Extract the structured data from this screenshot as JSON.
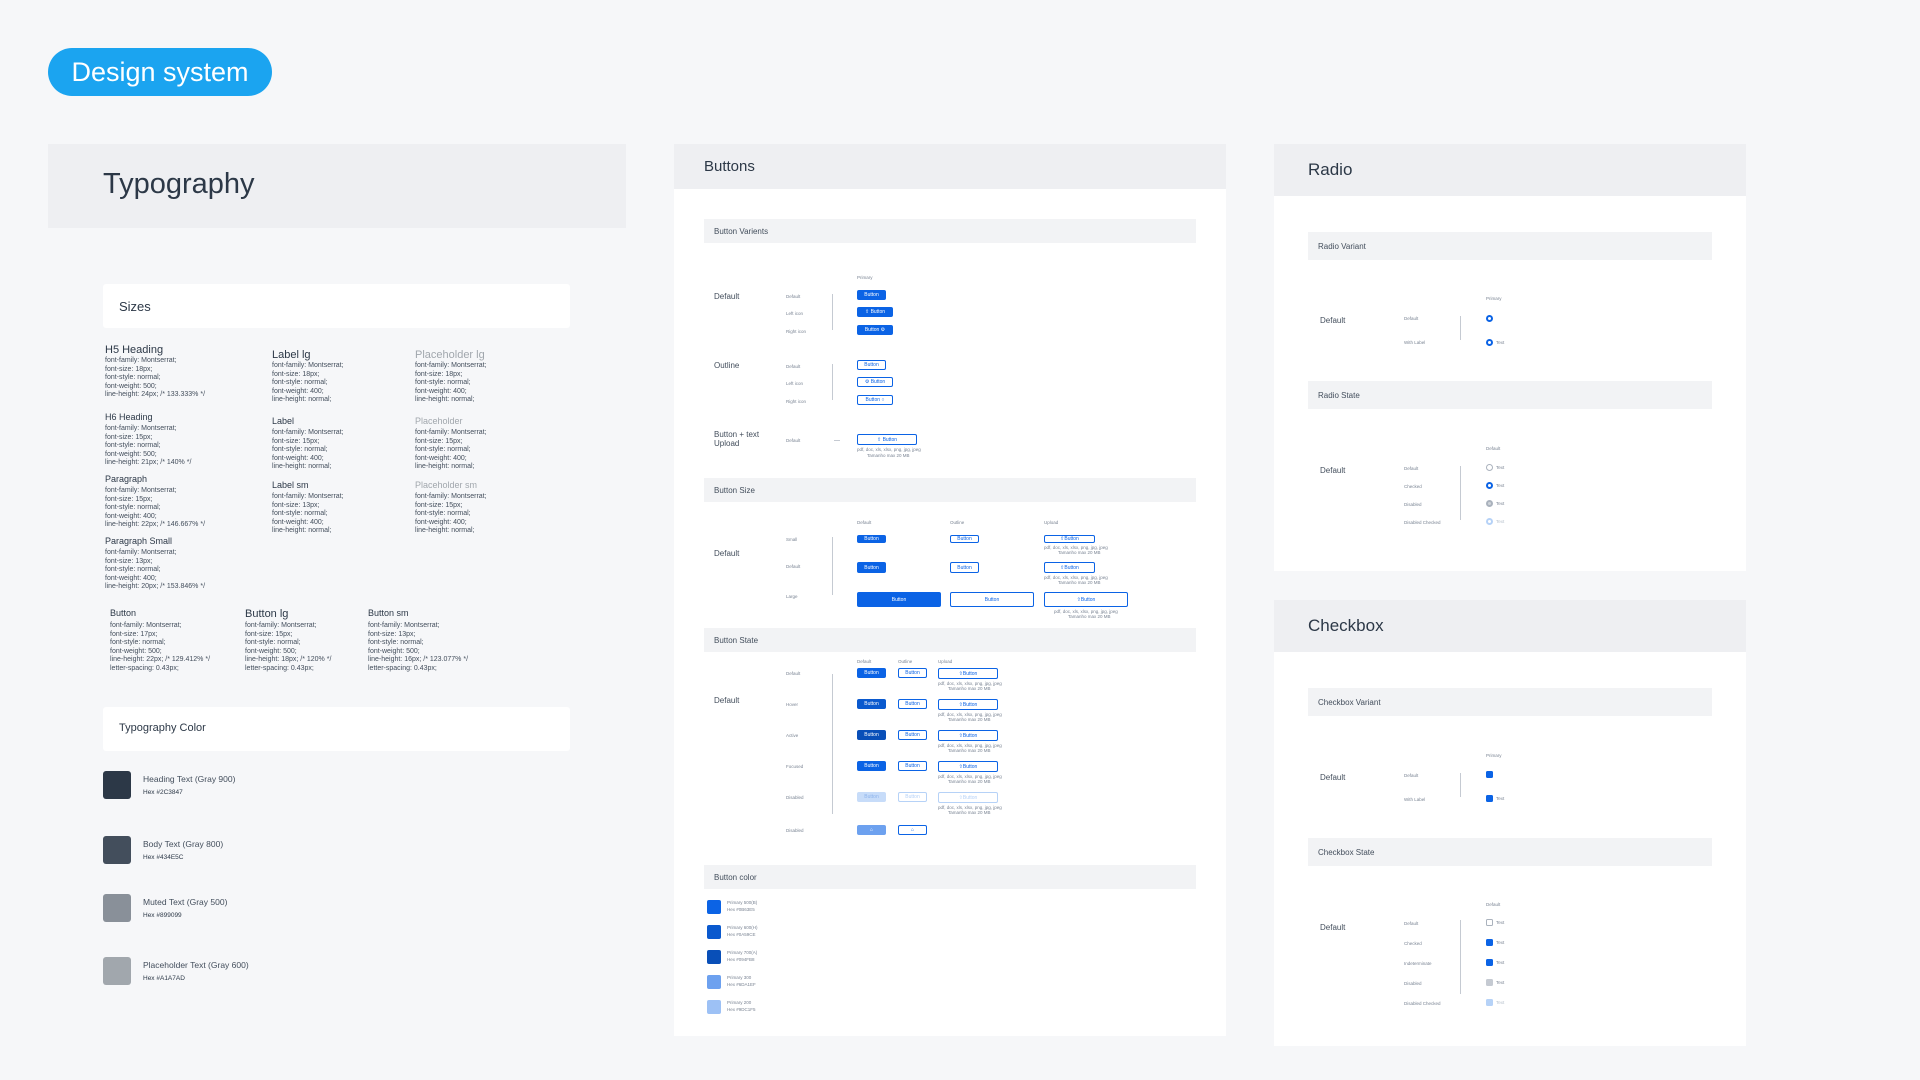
{
  "page_badge": "Design system",
  "typography": {
    "title": "Typography",
    "sizes_title": "Sizes",
    "col1": [
      {
        "name": "H5 Heading",
        "props": "font-family: Montserrat;\nfont-size: 18px;\nfont-style: normal;\nfont-weight: 500;\nline-height: 24px; /* 133.333% */"
      },
      {
        "name": "H6 Heading",
        "props": "font-family: Montserrat;\nfont-size: 15px;\nfont-style: normal;\nfont-weight: 500;\nline-height: 21px; /* 140% */"
      },
      {
        "name": "Paragraph",
        "props": "font-family: Montserrat;\nfont-size: 15px;\nfont-style: normal;\nfont-weight: 400;\nline-height: 22px; /* 146.667% */"
      },
      {
        "name": "Paragraph Small",
        "props": "font-family: Montserrat;\nfont-size: 13px;\nfont-style: normal;\nfont-weight: 400;\nline-height: 20px; /* 153.846% */"
      }
    ],
    "col2": [
      {
        "name": "Label lg",
        "props": "font-family: Montserrat;\nfont-size: 18px;\nfont-style: normal;\nfont-weight: 400;\nline-height: normal;"
      },
      {
        "name": "Label",
        "props": "font-family: Montserrat;\nfont-size: 15px;\nfont-style: normal;\nfont-weight: 400;\nline-height: normal;"
      },
      {
        "name": "Label sm",
        "props": "font-family: Montserrat;\nfont-size: 13px;\nfont-style: normal;\nfont-weight: 400;\nline-height: normal;"
      }
    ],
    "col3": [
      {
        "name": "Placeholder lg",
        "props": "font-family: Montserrat;\nfont-size: 18px;\nfont-style: normal;\nfont-weight: 400;\nline-height: normal;"
      },
      {
        "name": "Placeholder",
        "props": "font-family: Montserrat;\nfont-size: 15px;\nfont-style: normal;\nfont-weight: 400;\nline-height: normal;"
      },
      {
        "name": "Placeholder sm",
        "props": "font-family: Montserrat;\nfont-size: 15px;\nfont-style: normal;\nfont-weight: 400;\nline-height: normal;"
      }
    ],
    "buttons": [
      {
        "name": "Button",
        "props": "font-family: Montserrat;\nfont-size: 17px;\nfont-style: normal;\nfont-weight: 500;\nline-height: 22px; /* 129.412% */\nletter-spacing: 0.43px;"
      },
      {
        "name": "Button lg",
        "props": "font-family: Montserrat;\nfont-size: 15px;\nfont-style: normal;\nfont-weight: 500;\nline-height: 18px; /* 120% */\nletter-spacing: 0.43px;"
      },
      {
        "name": "Button sm",
        "props": "font-family: Montserrat;\nfont-size: 13px;\nfont-style: normal;\nfont-weight: 500;\nline-height: 16px; /* 123.077% */\nletter-spacing: 0.43px;"
      }
    ],
    "color_title": "Typography Color",
    "colors": [
      {
        "name": "Heading Text (Gray 900)",
        "hex": "Hex #2C3847",
        "color": "#2c3847"
      },
      {
        "name": "Body Text (Gray 800)",
        "hex": "Hex #434E5C",
        "color": "#434e5c"
      },
      {
        "name": "Muted Text (Gray 500)",
        "hex": "Hex #899099",
        "color": "#899099"
      },
      {
        "name": "Placeholder Text (Gray 600)",
        "hex": "Hex #A1A7AD",
        "color": "#a1a7ad"
      }
    ]
  },
  "buttons_panel": {
    "title": "Buttons",
    "variants_title": "Button Varients",
    "col_primary": "Primary",
    "row_default": "Default",
    "row_outline": "Outline",
    "row_upload": "Button + text Upload",
    "sub_default": "Default",
    "sub_left": "Left icon",
    "sub_right": "Right icon",
    "btn": "Button",
    "upload_hint": "pdf, doc, xls, xlsx, png, jpg, jpeg",
    "upload_max": "Tamanho max 20 MB",
    "size_title": "Button Size",
    "size_cols": [
      "Default",
      "Outline",
      "Upload"
    ],
    "size_rows": [
      "Small",
      "Default",
      "Large"
    ],
    "state_title": "Button State",
    "state_rows": [
      "Default",
      "Hover",
      "Active",
      "Focused",
      "Disabled",
      "Disabled"
    ],
    "color_title": "Button color",
    "colors": [
      {
        "name": "Primary 500(B)",
        "hex": "Hex #0B63E5",
        "color": "#0b63e5"
      },
      {
        "name": "Primary 600(H)",
        "hex": "Hex #0A59CE",
        "color": "#0a59ce"
      },
      {
        "name": "Primary 700(A)",
        "hex": "Hex #094FB8",
        "color": "#094fb8"
      },
      {
        "name": "Primary 300",
        "hex": "Hex #6DA1EF",
        "color": "#6da1ef"
      },
      {
        "name": "Primary 200",
        "hex": "Hex #9DC1F5",
        "color": "#9dc1f5"
      }
    ]
  },
  "radio": {
    "title": "Radio",
    "variant_title": "Radio Variant",
    "state_title": "Radio State",
    "primary": "Primary",
    "default_col": "Default",
    "row": "Default",
    "sub_default": "Default",
    "sub_label": "With Label",
    "text": "Text",
    "states": [
      "Default",
      "Checked",
      "Disabled",
      "Disabled Checked"
    ]
  },
  "checkbox": {
    "title": "Checkbox",
    "variant_title": "Checkbox Variant",
    "state_title": "Checkbox State",
    "primary": "Primary",
    "default_col": "Default",
    "row": "Default",
    "sub_default": "Default",
    "sub_label": "With Label",
    "text": "Text",
    "states": [
      "Default",
      "Checked",
      "Indeterminate",
      "Disabled",
      "Disabled Checked"
    ]
  }
}
